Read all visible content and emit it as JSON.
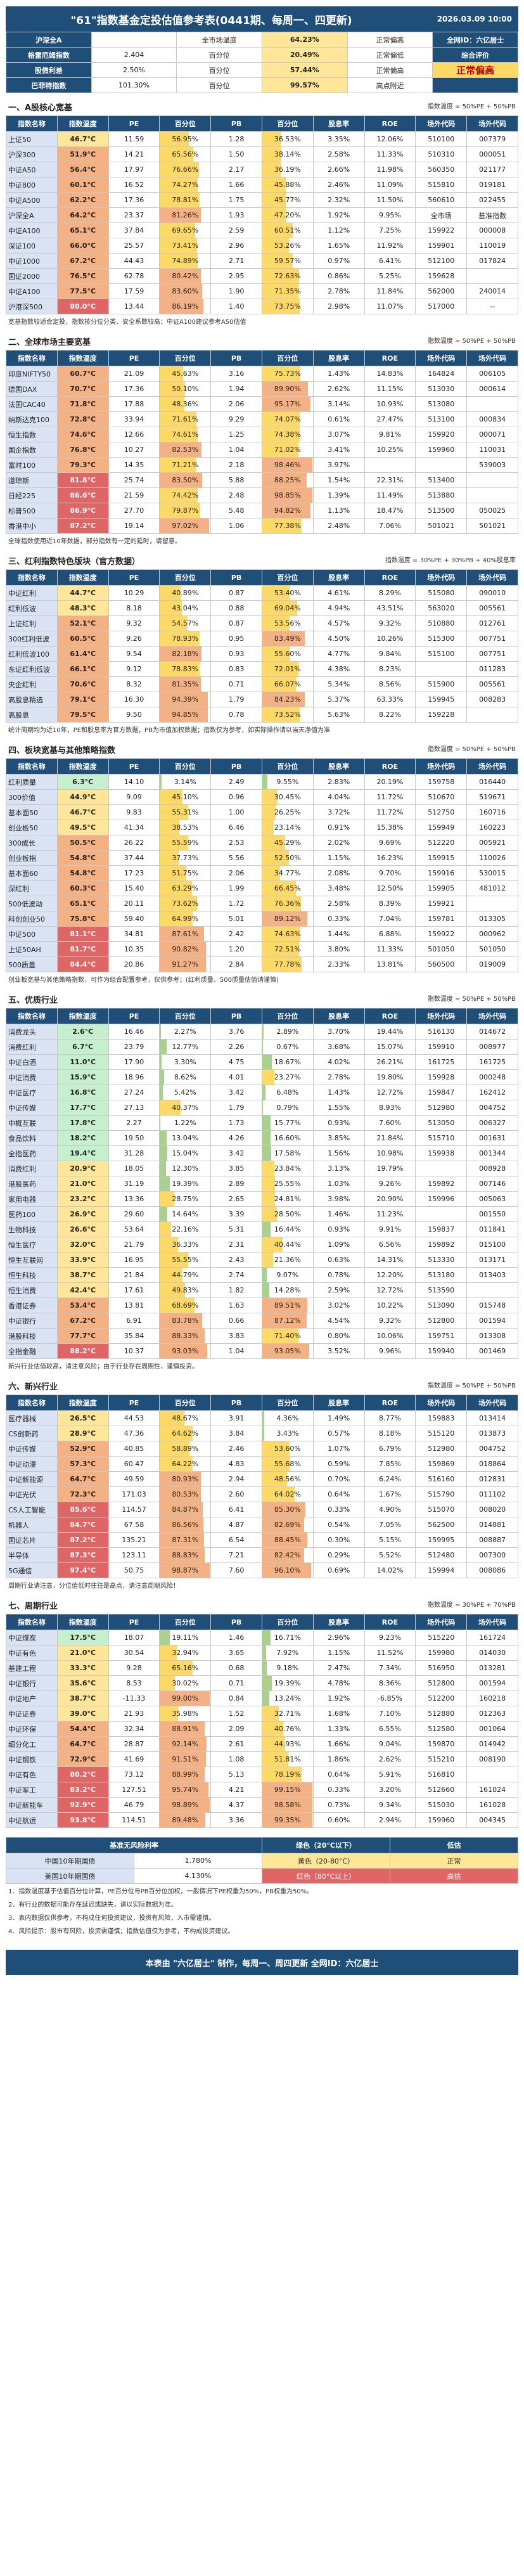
{
  "header": {
    "title": "\"61\"指数基金定投估值参考表(0441期、每周一、四更新)",
    "date": "2026.03.09 10:00"
  },
  "summary": {
    "rows": [
      [
        "沪深全A",
        "",
        "全市场温度",
        "64.23%",
        "正常偏高",
        "全网ID：六亿居士"
      ],
      [
        "格雷厄姆指数",
        "2.404",
        "百分位",
        "20.49%",
        "正常偏低",
        "综合评价"
      ],
      [
        "股债利差",
        "2.50%",
        "百分位",
        "57.44%",
        "正常偏高",
        "正常偏高"
      ],
      [
        "巴菲特指数",
        "101.30%",
        "百分位",
        "99.57%",
        "高点附近",
        ""
      ]
    ]
  },
  "sections": [
    {
      "title": "一、A股核心宽基",
      "right": "指数温度 = 50%PE + 50%PB"
    },
    {
      "title": "二、全球市场主要宽基",
      "right": "指数温度 = 50%PE + 50%PB"
    },
    {
      "title": "三、红利指数特色版块（官方数据）",
      "right": "指数温度 = 30%PE + 30%PB + 40%股息率"
    },
    {
      "title": "四、板块宽基与其他策略指数",
      "right": "指数温度 = 50%PE + 50%PB"
    },
    {
      "title": "五、优质行业",
      "right": "指数温度 = 50%PE + 50%PB"
    },
    {
      "title": "六、新兴行业",
      "right": "指数温度 = 50%PE + 50%PB"
    },
    {
      "title": "七、周期行业",
      "right": "指数温度 = 30%PE + 70%PB"
    }
  ],
  "columns": [
    "指数名称",
    "指数温度",
    "PE",
    "百分位",
    "PB",
    "百分位",
    "股息率",
    "ROE",
    "场外代码",
    "场外代码"
  ],
  "tables": [
    [
      [
        "上证50",
        "46.7°C",
        "11.59",
        "56.95%",
        "1.28",
        "36.53%",
        "3.35%",
        "12.06%",
        "510100",
        "007379"
      ],
      [
        "沪深300",
        "51.9°C",
        "14.21",
        "65.56%",
        "1.50",
        "38.14%",
        "2.58%",
        "11.33%",
        "510310",
        "000051"
      ],
      [
        "中证A50",
        "56.4°C",
        "17.97",
        "76.66%",
        "2.17",
        "36.19%",
        "2.66%",
        "11.98%",
        "560350",
        "021177"
      ],
      [
        "中证800",
        "60.1°C",
        "16.52",
        "74.27%",
        "1.66",
        "45.88%",
        "2.46%",
        "11.09%",
        "515810",
        "019181"
      ],
      [
        "中证A500",
        "62.2°C",
        "17.36",
        "78.81%",
        "1.75",
        "45.77%",
        "2.32%",
        "11.50%",
        "560610",
        "022455"
      ],
      [
        "沪深全A",
        "64.2°C",
        "23.37",
        "81.26%",
        "1.93",
        "47.20%",
        "1.92%",
        "9.95%",
        "全市场",
        "基准指数"
      ],
      [
        "中证A100",
        "65.1°C",
        "37.84",
        "69.65%",
        "2.59",
        "60.51%",
        "1.12%",
        "7.25%",
        "159922",
        "000008"
      ],
      [
        "深证100",
        "66.0°C",
        "25.57",
        "73.41%",
        "2.96",
        "53.26%",
        "1.65%",
        "11.92%",
        "159901",
        "110019"
      ],
      [
        "中证1000",
        "67.2°C",
        "44.43",
        "74.89%",
        "2.71",
        "59.57%",
        "0.97%",
        "6.41%",
        "512100",
        "017824"
      ],
      [
        "国证2000",
        "76.5°C",
        "62.78",
        "80.42%",
        "2.95",
        "72.63%",
        "0.86%",
        "5.25%",
        "159628",
        ""
      ],
      [
        "中证A100",
        "77.5°C",
        "17.59",
        "83.60%",
        "1.90",
        "71.35%",
        "2.78%",
        "11.84%",
        "562000",
        "240014"
      ],
      [
        "沪港深500",
        "80.0°C",
        "13.44",
        "86.19%",
        "1.40",
        "73.75%",
        "2.98%",
        "11.07%",
        "517000",
        "--"
      ]
    ],
    [
      [
        "印度NIFTY50",
        "60.7°C",
        "21.09",
        "45.63%",
        "3.16",
        "75.73%",
        "1.43%",
        "14.83%",
        "164824",
        "006105"
      ],
      [
        "德国DAX",
        "70.7°C",
        "17.36",
        "50.10%",
        "1.94",
        "89.90%",
        "2.62%",
        "11.15%",
        "513030",
        "000614"
      ],
      [
        "法国CAC40",
        "71.8°C",
        "17.88",
        "48.36%",
        "2.06",
        "95.17%",
        "3.14%",
        "10.93%",
        "513080",
        ""
      ],
      [
        "纳斯达克100",
        "72.8°C",
        "33.94",
        "71.61%",
        "9.29",
        "74.07%",
        "0.61%",
        "27.47%",
        "513100",
        "000834"
      ],
      [
        "恒生指数",
        "74.6°C",
        "12.66",
        "74.61%",
        "1.25",
        "74.38%",
        "3.07%",
        "9.81%",
        "159920",
        "000071"
      ],
      [
        "国企指数",
        "76.8°C",
        "10.27",
        "82.53%",
        "1.04",
        "71.02%",
        "3.41%",
        "10.25%",
        "159960",
        "110031"
      ],
      [
        "富时100",
        "79.3°C",
        "14.35",
        "71.21%",
        "2.18",
        "98.46%",
        "3.97%",
        "",
        "",
        "539003"
      ],
      [
        "道琼斯",
        "81.8°C",
        "25.74",
        "83.50%",
        "5.88",
        "88.25%",
        "1.54%",
        "22.31%",
        "513400",
        ""
      ],
      [
        "日经225",
        "86.6°C",
        "21.59",
        "74.42%",
        "2.48",
        "98.85%",
        "1.39%",
        "11.49%",
        "513880",
        ""
      ],
      [
        "标普500",
        "86.9°C",
        "27.70",
        "79.87%",
        "5.48",
        "94.82%",
        "1.13%",
        "18.47%",
        "513500",
        "050025"
      ],
      [
        "香港中小",
        "87.2°C",
        "19.14",
        "97.02%",
        "1.06",
        "77.38%",
        "2.48%",
        "7.06%",
        "501021",
        "501021"
      ]
    ],
    [
      [
        "中证红利",
        "44.7°C",
        "10.29",
        "40.89%",
        "0.87",
        "53.40%",
        "4.61%",
        "8.29%",
        "515080",
        "090010"
      ],
      [
        "红利低波",
        "48.3°C",
        "8.18",
        "43.04%",
        "0.88",
        "69.04%",
        "4.94%",
        "43.51%",
        "563020",
        "005561"
      ],
      [
        "上证红利",
        "52.1°C",
        "9.32",
        "54.57%",
        "0.87",
        "53.56%",
        "4.57%",
        "9.32%",
        "510880",
        "012761"
      ],
      [
        "300红利低波",
        "60.5°C",
        "9.26",
        "78.93%",
        "0.95",
        "83.49%",
        "4.50%",
        "10.26%",
        "515300",
        "007751"
      ],
      [
        "红利低波100",
        "61.4°C",
        "9.54",
        "82.18%",
        "0.93",
        "55.60%",
        "4.77%",
        "9.84%",
        "515100",
        "007751"
      ],
      [
        "东证红利低波",
        "66.1°C",
        "9.12",
        "78.83%",
        "0.83",
        "72.01%",
        "4.38%",
        "8.23%",
        "",
        "011283"
      ],
      [
        "央企红利",
        "70.6°C",
        "8.32",
        "81.35%",
        "0.71",
        "66.07%",
        "5.34%",
        "8.56%",
        "515900",
        "005561"
      ],
      [
        "高股息精选",
        "79.1°C",
        "16.30",
        "94.39%",
        "1.79",
        "84.23%",
        "5.37%",
        "63.33%",
        "159945",
        "008283"
      ],
      [
        "高股息",
        "79.5°C",
        "9.50",
        "94.85%",
        "0.78",
        "73.52%",
        "5.63%",
        "8.22%",
        "159228",
        ""
      ]
    ],
    [
      [
        "红利质量",
        "6.3°C",
        "14.10",
        "3.14%",
        "2.49",
        "9.55%",
        "2.83%",
        "20.19%",
        "159758",
        "016440"
      ],
      [
        "300价值",
        "44.9°C",
        "9.09",
        "45.10%",
        "0.96",
        "30.45%",
        "4.04%",
        "11.72%",
        "510670",
        "519671"
      ],
      [
        "基本面50",
        "46.7°C",
        "9.83",
        "55.31%",
        "1.00",
        "26.25%",
        "3.72%",
        "11.72%",
        "512750",
        "160716"
      ],
      [
        "创业板50",
        "49.5°C",
        "41.34",
        "38.53%",
        "6.46",
        "23.14%",
        "0.91%",
        "15.38%",
        "159949",
        "160223"
      ],
      [
        "300成长",
        "50.5°C",
        "26.22",
        "55.59%",
        "2.53",
        "45.29%",
        "2.02%",
        "9.69%",
        "512220",
        "005921"
      ],
      [
        "创业板指",
        "54.8°C",
        "37.44",
        "37.73%",
        "5.56",
        "52.50%",
        "1.15%",
        "16.23%",
        "159915",
        "110026"
      ],
      [
        "基本面60",
        "54.8°C",
        "17.23",
        "51.75%",
        "2.06",
        "34.77%",
        "2.08%",
        "9.70%",
        "159916",
        "530015"
      ],
      [
        "深红利",
        "60.3°C",
        "15.40",
        "63.29%",
        "1.99",
        "66.45%",
        "3.48%",
        "12.50%",
        "159905",
        "481012"
      ],
      [
        "500低波动",
        "65.1°C",
        "20.11",
        "73.62%",
        "1.72",
        "76.36%",
        "2.58%",
        "8.39%",
        "159921",
        ""
      ],
      [
        "科创创业50",
        "75.8°C",
        "59.40",
        "64.99%",
        "5.01",
        "89.12%",
        "0.33%",
        "7.04%",
        "159781",
        "013305"
      ],
      [
        "中证500",
        "81.1°C",
        "34.81",
        "87.61%",
        "2.42",
        "74.63%",
        "1.44%",
        "6.88%",
        "159922",
        "000962"
      ],
      [
        "上证50AH",
        "81.7°C",
        "10.35",
        "90.82%",
        "1.20",
        "72.51%",
        "3.80%",
        "11.33%",
        "501050",
        "501050"
      ],
      [
        "500质量",
        "84.4°C",
        "20.86",
        "91.27%",
        "2.84",
        "77.78%",
        "2.33%",
        "13.81%",
        "560500",
        "019009"
      ]
    ],
    [
      [
        "消费龙头",
        "2.6°C",
        "16.46",
        "2.27%",
        "3.76",
        "2.89%",
        "3.70%",
        "19.44%",
        "516130",
        "014672"
      ],
      [
        "消费红利",
        "6.7°C",
        "23.79",
        "12.77%",
        "2.26",
        "0.67%",
        "3.68%",
        "15.07%",
        "159910",
        "008977"
      ],
      [
        "中证白酒",
        "11.0°C",
        "17.90",
        "3.30%",
        "4.75",
        "18.67%",
        "4.02%",
        "26.21%",
        "161725",
        "161725"
      ],
      [
        "中证消费",
        "15.9°C",
        "18.96",
        "8.62%",
        "4.01",
        "23.27%",
        "2.78%",
        "19.80%",
        "159928",
        "000248"
      ],
      [
        "中证医疗",
        "16.8°C",
        "27.24",
        "5.42%",
        "3.42",
        "6.48%",
        "1.43%",
        "12.72%",
        "159847",
        "162412"
      ],
      [
        "中证传媒",
        "17.7°C",
        "27.13",
        "40.37%",
        "1.79",
        "0.79%",
        "1.55%",
        "8.93%",
        "512980",
        "004752"
      ],
      [
        "中概互联",
        "17.8°C",
        "2.27",
        "1.22%",
        "1.73",
        "15.77%",
        "0.93%",
        "7.60%",
        "513050",
        "006327"
      ],
      [
        "食品饮料",
        "18.2°C",
        "19.50",
        "13.04%",
        "4.26",
        "16.60%",
        "3.85%",
        "21.84%",
        "515710",
        "001631"
      ],
      [
        "全指医药",
        "19.4°C",
        "31.28",
        "15.04%",
        "3.42",
        "17.58%",
        "1.56%",
        "10.98%",
        "159938",
        "001344"
      ],
      [
        "消费红利",
        "20.9°C",
        "18.05",
        "12.30%",
        "3.85",
        "23.84%",
        "3.13%",
        "19.79%",
        "",
        "008928"
      ],
      [
        "港股医药",
        "21.0°C",
        "31.19",
        "19.39%",
        "2.89",
        "25.55%",
        "1.03%",
        "9.26%",
        "159892",
        "007146"
      ],
      [
        "家用电器",
        "23.2°C",
        "13.36",
        "28.75%",
        "2.65",
        "24.81%",
        "3.98%",
        "20.90%",
        "159996",
        "005063"
      ],
      [
        "医药100",
        "26.9°C",
        "29.60",
        "14.64%",
        "3.39",
        "28.50%",
        "1.46%",
        "11.23%",
        "",
        "001550"
      ],
      [
        "生物科技",
        "26.6°C",
        "53.64",
        "22.16%",
        "5.31",
        "16.44%",
        "0.93%",
        "9.91%",
        "159837",
        "011841"
      ],
      [
        "恒生医疗",
        "32.0°C",
        "21.79",
        "36.33%",
        "2.31",
        "40.44%",
        "1.09%",
        "6.56%",
        "159892",
        "015100"
      ],
      [
        "恒生互联网",
        "33.9°C",
        "16.95",
        "55.55%",
        "2.43",
        "21.36%",
        "0.63%",
        "14.31%",
        "513330",
        "013171"
      ],
      [
        "恒生科技",
        "38.7°C",
        "21.84",
        "44.79%",
        "2.74",
        "9.07%",
        "0.78%",
        "12.20%",
        "513180",
        "013403"
      ],
      [
        "恒生消费",
        "42.4°C",
        "17.61",
        "49.83%",
        "1.82",
        "14.28%",
        "2.59%",
        "12.72%",
        "513590",
        ""
      ],
      [
        "香港证券",
        "53.4°C",
        "13.81",
        "68.69%",
        "1.63",
        "89.51%",
        "3.02%",
        "10.22%",
        "513090",
        "015748"
      ],
      [
        "中证银行",
        "67.2°C",
        "6.91",
        "83.78%",
        "0.66",
        "87.12%",
        "4.54%",
        "9.32%",
        "512800",
        "001594"
      ],
      [
        "港股科技",
        "77.7°C",
        "35.84",
        "88.33%",
        "3.83",
        "71.40%",
        "0.80%",
        "10.06%",
        "159751",
        "013308"
      ],
      [
        "全指金融",
        "88.2°C",
        "10.37",
        "93.03%",
        "1.04",
        "93.05%",
        "3.52%",
        "9.96%",
        "159940",
        "001469"
      ]
    ],
    [
      [
        "医疗器械",
        "26.5°C",
        "44.53",
        "48.67%",
        "3.91",
        "4.36%",
        "1.49%",
        "8.77%",
        "159883",
        "013414"
      ],
      [
        "CS创新药",
        "28.9°C",
        "47.36",
        "64.62%",
        "3.84",
        "3.43%",
        "0.57%",
        "8.18%",
        "515120",
        "013873"
      ],
      [
        "中证传媒",
        "52.9°C",
        "40.85",
        "58.89%",
        "2.46",
        "53.60%",
        "1.07%",
        "6.79%",
        "512980",
        "004752"
      ],
      [
        "中证动漫",
        "57.3°C",
        "60.47",
        "64.22%",
        "4.83",
        "55.68%",
        "0.59%",
        "7.85%",
        "159869",
        "018864"
      ],
      [
        "中证新能源",
        "64.7°C",
        "49.59",
        "80.93%",
        "2.94",
        "48.56%",
        "0.70%",
        "6.24%",
        "516160",
        "012831"
      ],
      [
        "中证光伏",
        "72.3°C",
        "171.03",
        "80.53%",
        "2.60",
        "64.02%",
        "0.64%",
        "1.67%",
        "515790",
        "011102"
      ],
      [
        "CS人工智能",
        "85.6°C",
        "114.57",
        "84.87%",
        "6.41",
        "85.30%",
        "0.33%",
        "4.90%",
        "515070",
        "008020"
      ],
      [
        "机器人",
        "84.7°C",
        "67.58",
        "86.56%",
        "4.87",
        "82.69%",
        "0.54%",
        "7.05%",
        "562500",
        "014881"
      ],
      [
        "国证芯片",
        "87.2°C",
        "135.21",
        "87.31%",
        "6.54",
        "88.45%",
        "0.30%",
        "5.15%",
        "159995",
        "008887"
      ],
      [
        "半导体",
        "87.3°C",
        "123.11",
        "88.83%",
        "7.21",
        "82.42%",
        "0.29%",
        "5.52%",
        "512480",
        "007300"
      ],
      [
        "5G通信",
        "97.4°C",
        "50.75",
        "98.87%",
        "7.60",
        "96.10%",
        "0.69%",
        "14.02%",
        "159994",
        "008086"
      ]
    ],
    [
      [
        "中证煤炭",
        "17.5°C",
        "18.07",
        "19.11%",
        "1.46",
        "16.71%",
        "2.96%",
        "9.23%",
        "515220",
        "161724"
      ],
      [
        "中证有色",
        "21.0°C",
        "30.54",
        "32.94%",
        "3.65",
        "7.92%",
        "1.15%",
        "11.52%",
        "159980",
        "014030"
      ],
      [
        "基建工程",
        "33.3°C",
        "9.28",
        "65.16%",
        "0.68",
        "9.18%",
        "2.47%",
        "7.34%",
        "516950",
        "013281"
      ],
      [
        "中证银行",
        "35.6°C",
        "8.53",
        "30.02%",
        "0.71",
        "19.39%",
        "4.78%",
        "8.36%",
        "512800",
        "001594"
      ],
      [
        "中证地产",
        "38.7°C",
        "-11.33",
        "99.00%",
        "0.84",
        "13.24%",
        "1.92%",
        "-6.85%",
        "512200",
        "160218"
      ],
      [
        "中证证券",
        "39.0°C",
        "21.93",
        "35.98%",
        "1.52",
        "32.71%",
        "1.68%",
        "7.10%",
        "512880",
        "012363"
      ],
      [
        "中证环保",
        "54.4°C",
        "32.34",
        "88.91%",
        "2.09",
        "40.76%",
        "1.33%",
        "6.55%",
        "512580",
        "001064"
      ],
      [
        "细分化工",
        "64.7°C",
        "28.87",
        "92.14%",
        "2.61",
        "44.93%",
        "1.66%",
        "9.04%",
        "159870",
        "014942"
      ],
      [
        "中证钢铁",
        "72.9°C",
        "41.69",
        "91.51%",
        "1.08",
        "51.81%",
        "1.86%",
        "2.62%",
        "515210",
        "008190"
      ],
      [
        "中证有色",
        "80.2°C",
        "73.12",
        "88.99%",
        "5.13",
        "78.19%",
        "0.64%",
        "5.91%",
        "516810",
        ""
      ],
      [
        "中证军工",
        "83.2°C",
        "127.51",
        "95.74%",
        "4.21",
        "99.15%",
        "0.33%",
        "3.20%",
        "512660",
        "161024"
      ],
      [
        "中证新能车",
        "92.9°C",
        "46.79",
        "98.89%",
        "4.37",
        "98.58%",
        "0.73%",
        "9.34%",
        "515030",
        "161028"
      ],
      [
        "中证航运",
        "93.8°C",
        "114.51",
        "89.48%",
        "3.36",
        "99.35%",
        "0.60%",
        "2.94%",
        "159960",
        "004345"
      ]
    ]
  ],
  "notes": [
    "宽基指数较适合定投，指数按分位分类、安全系数较高；中证A100建议参考A50估值",
    "全球指数使用近10年数据，部分指数有一定的延时，请留意。",
    "统计周期均为近10年，PE和股息率为官方数据，PB为市值加权数据；指数仅为参考，如实际操作请以当天净值为准",
    "创业板宽基与其他策略指数，可作为组合配置参考，仅供参考；(红利质量、500质量估值请谨慎)",
    "新兴行业估值较高，请注意风险；由于行业存在周期性，谨慎投资。",
    "周期行业请注意，分位值低时往往是高点，请注意周期风险！"
  ],
  "legend": {
    "title": "基准无风险利率",
    "rows": [
      [
        "中国10年期国债",
        "1.780%"
      ],
      [
        "美国10年期国债",
        "4.130%"
      ]
    ],
    "zones": [
      [
        "绿色（20°C以下）",
        "低估"
      ],
      [
        "黄色（20-80°C）",
        "正常"
      ],
      [
        "红色（80°C以上）",
        "高估"
      ]
    ]
  },
  "footer_notes": [
    "1、指数温度基于估值百分位计算，PE百分位与PB百分位加权，一般情况下PE权重为50%，PB权重为50%。",
    "2、有行业的数据可能存在延迟或缺失，请以实际数据为准。",
    "3、表内数据仅供参考，不构成任何投资建议，投资有风险，入市需谨慎。",
    "4、风险提示：股市有风险，投资需谨慎；指数估值仅为参考，不构成投资建议。"
  ],
  "footer": "本表由 \"六亿居士\" 制作，每周一、周四更新    全网ID：六亿居士"
}
